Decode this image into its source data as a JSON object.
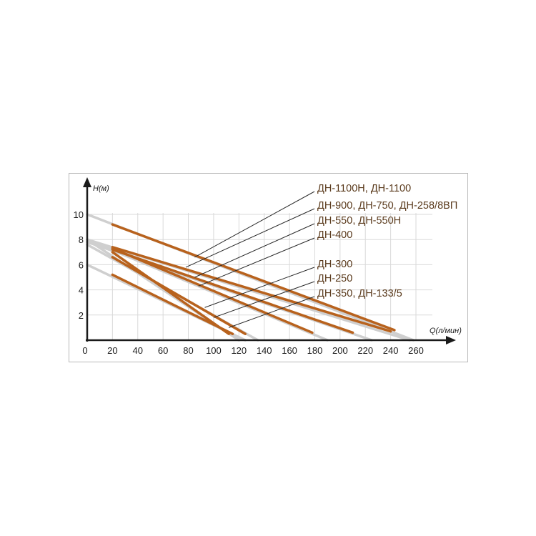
{
  "chart_data": {
    "type": "line",
    "title": "",
    "xlabel": "Q(л/мин)",
    "ylabel": "H(м)",
    "xlim": [
      0,
      260
    ],
    "ylim": [
      0,
      10
    ],
    "x_ticks": [
      "0",
      "20",
      "40",
      "60",
      "80",
      "100",
      "120",
      "140",
      "160",
      "180",
      "200",
      "220",
      "240",
      "260"
    ],
    "y_ticks": [
      "2",
      "4",
      "6",
      "8",
      "10"
    ],
    "grid": true,
    "series_color": "#b8621d",
    "extension_color": "#cfcfcf",
    "series": [
      {
        "name": "ДН-1100Н, ДН-1100",
        "x": [
          20,
          243
        ],
        "y": [
          9.2,
          0.8
        ],
        "x_full": [
          0,
          258
        ],
        "y_full": [
          10,
          0
        ]
      },
      {
        "name": "ДН-900, ДН-750, ДН-258/8ВП",
        "x": [
          20,
          240
        ],
        "y": [
          7.4,
          0.7
        ],
        "x_full": [
          0,
          255
        ],
        "y_full": [
          8,
          0
        ]
      },
      {
        "name": "ДН-550, ДН-550Н",
        "x": [
          20,
          210
        ],
        "y": [
          7.2,
          0.6
        ],
        "x_full": [
          0,
          225
        ],
        "y_full": [
          7.8,
          0
        ]
      },
      {
        "name": "ДН-400",
        "x": [
          20,
          178
        ],
        "y": [
          7.3,
          0.6
        ],
        "x_full": [
          0,
          190
        ],
        "y_full": [
          8,
          0
        ]
      },
      {
        "name": "ДН-300",
        "x": [
          20,
          125
        ],
        "y": [
          6.6,
          0.5
        ],
        "x_full": [
          0,
          135
        ],
        "y_full": [
          7.6,
          0
        ]
      },
      {
        "name": "ДН-250",
        "x": [
          20,
          112
        ],
        "y": [
          7.0,
          0.5
        ],
        "x_full": [
          0,
          120
        ],
        "y_full": [
          8,
          0
        ]
      },
      {
        "name": "ДН-350, ДН-133/5",
        "x": [
          20,
          115
        ],
        "y": [
          5.2,
          0.5
        ],
        "x_full": [
          0,
          125
        ],
        "y_full": [
          6,
          0
        ]
      }
    ],
    "legend": [
      {
        "label": "ДН-1100Н, ДН-1100",
        "pointer_x": 85,
        "pointer_y": 6.6
      },
      {
        "label": "ДН-900, ДН-750, ДН-258/8ВП",
        "pointer_x": 78,
        "pointer_y": 5.8
      },
      {
        "label": "ДН-550, ДН-550Н",
        "pointer_x": 85,
        "pointer_y": 5.0
      },
      {
        "label": "ДН-400",
        "pointer_x": 88,
        "pointer_y": 4.3
      },
      {
        "label": "ДН-300",
        "pointer_x": 93,
        "pointer_y": 2.6
      },
      {
        "label": "ДН-250",
        "pointer_x": 100,
        "pointer_y": 1.8
      },
      {
        "label": "ДН-350, ДН-133/5",
        "pointer_x": 112,
        "pointer_y": 1.0
      }
    ],
    "legend_placement": "right"
  }
}
